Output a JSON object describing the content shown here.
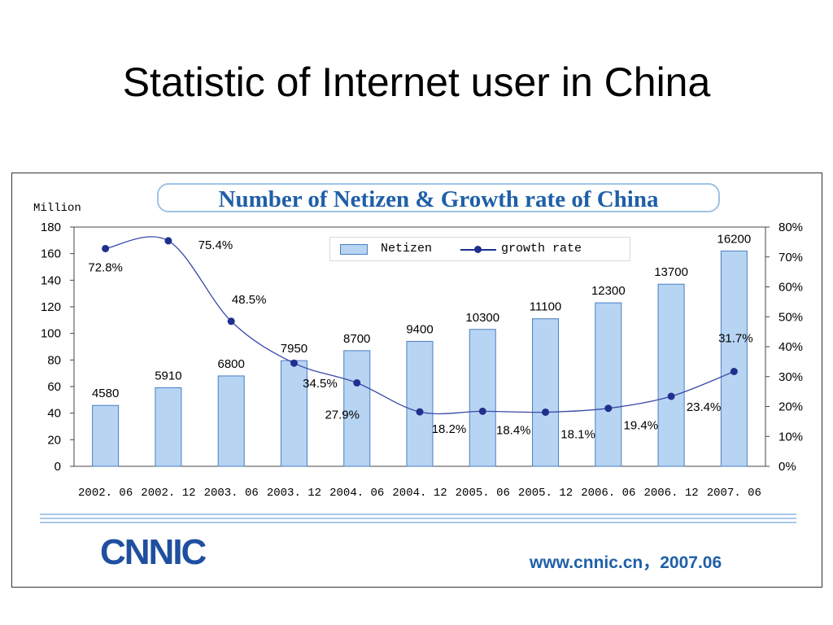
{
  "slide": {
    "title": "Statistic of Internet user in China"
  },
  "chart_data": {
    "type": "bar",
    "title": "Number of Netizen & Growth rate of China",
    "ylabel": "Million",
    "categories": [
      "2002. 06",
      "2002. 12",
      "2003. 06",
      "2003. 12",
      "2004. 06",
      "2004. 12",
      "2005. 06",
      "2005. 12",
      "2006. 06",
      "2006. 12",
      "2007. 06"
    ],
    "series": [
      {
        "name": "Netizen",
        "type": "bar",
        "axis": "left",
        "values": [
          45.8,
          59.1,
          68,
          79.5,
          87,
          94,
          103,
          111,
          123,
          137,
          162
        ],
        "labels": [
          "4580",
          "5910",
          "6800",
          "7950",
          "8700",
          "9400",
          "10300",
          "11100",
          "12300",
          "13700",
          "16200"
        ]
      },
      {
        "name": "growth rate",
        "type": "line",
        "axis": "right",
        "values": [
          72.8,
          75.4,
          48.5,
          34.5,
          27.9,
          18.2,
          18.4,
          18.1,
          19.4,
          23.4,
          31.7
        ],
        "labels": [
          "72.8%",
          "75.4%",
          "48.5%",
          "34.5%",
          "27.9%",
          "18.2%",
          "18.4%",
          "18.1%",
          "19.4%",
          "23.4%",
          "31.7%"
        ]
      }
    ],
    "y_left": {
      "range": [
        0,
        180
      ],
      "ticks": [
        "0",
        "20",
        "40",
        "60",
        "80",
        "100",
        "120",
        "140",
        "160",
        "180"
      ]
    },
    "y_right": {
      "range": [
        0,
        80
      ],
      "ticks": [
        "0%",
        "10%",
        "20%",
        "30%",
        "40%",
        "50%",
        "60%",
        "70%",
        "80%"
      ]
    },
    "grid": false,
    "legend_position": "top-center",
    "colors": {
      "bar_fill": "#b7d4f3",
      "bar_stroke": "#4a7fc0",
      "line": "#3a4aa8",
      "marker": "#1f2f8c"
    }
  },
  "footer": {
    "logo_text": "CNNIC",
    "source": "www.cnnic.cn，2007.06"
  }
}
